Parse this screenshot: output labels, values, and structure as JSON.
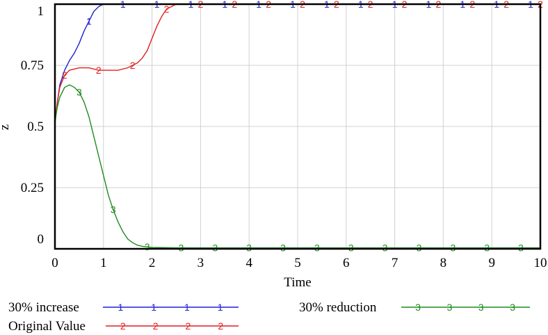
{
  "chart_data": {
    "type": "line",
    "xlabel": "Time",
    "ylabel": "z",
    "xlim": [
      0,
      10
    ],
    "ylim": [
      0,
      1
    ],
    "xticks": [
      "0",
      "1",
      "2",
      "3",
      "4",
      "5",
      "6",
      "7",
      "8",
      "9",
      "10"
    ],
    "yticks": [
      "0",
      "0.25",
      "0.5",
      "0.75",
      "1"
    ],
    "grid": true,
    "legend_position": "bottom",
    "series": [
      {
        "name": "30% increase",
        "marker": "1",
        "color": "#1f1fd6",
        "x": [
          0,
          0.05,
          0.1,
          0.2,
          0.3,
          0.4,
          0.5,
          0.6,
          0.7,
          0.8,
          0.9,
          1.0,
          1.1,
          1.5,
          2,
          3,
          4,
          5,
          6,
          7,
          8,
          9,
          10
        ],
        "y": [
          0.51,
          0.6,
          0.67,
          0.73,
          0.77,
          0.8,
          0.84,
          0.89,
          0.93,
          0.97,
          0.99,
          1.0,
          1.0,
          1.0,
          1.0,
          1.0,
          1.0,
          1.0,
          1.0,
          1.0,
          1.0,
          1.0,
          1.0
        ]
      },
      {
        "name": "Original Value",
        "marker": "2",
        "color": "#e01f1f",
        "x": [
          0,
          0.05,
          0.1,
          0.2,
          0.3,
          0.5,
          0.7,
          0.9,
          1.1,
          1.3,
          1.5,
          1.7,
          1.8,
          1.9,
          2.0,
          2.1,
          2.2,
          2.3,
          2.4,
          2.5,
          2.7,
          3,
          4,
          5,
          6,
          7,
          8,
          9,
          10
        ],
        "y": [
          0.52,
          0.6,
          0.66,
          0.71,
          0.73,
          0.74,
          0.74,
          0.73,
          0.73,
          0.73,
          0.74,
          0.76,
          0.78,
          0.81,
          0.86,
          0.91,
          0.95,
          0.98,
          0.99,
          1.0,
          1.0,
          1.0,
          1.0,
          1.0,
          1.0,
          1.0,
          1.0,
          1.0,
          1.0
        ]
      },
      {
        "name": "30% reduction",
        "marker": "3",
        "color": "#1f8a1f",
        "x": [
          0,
          0.05,
          0.1,
          0.2,
          0.3,
          0.4,
          0.5,
          0.6,
          0.7,
          0.8,
          0.9,
          1.0,
          1.1,
          1.2,
          1.3,
          1.4,
          1.5,
          1.6,
          1.7,
          1.8,
          1.9,
          2.0,
          2.2,
          2.5,
          3,
          4,
          5,
          6,
          7,
          8,
          9,
          10
        ],
        "y": [
          0.52,
          0.58,
          0.62,
          0.66,
          0.67,
          0.66,
          0.64,
          0.6,
          0.54,
          0.46,
          0.38,
          0.3,
          0.22,
          0.16,
          0.11,
          0.07,
          0.04,
          0.025,
          0.015,
          0.01,
          0.008,
          0.006,
          0.005,
          0.004,
          0.004,
          0.004,
          0.004,
          0.004,
          0.004,
          0.004,
          0.004,
          0.004
        ]
      }
    ],
    "legend": [
      {
        "label": "30% increase",
        "marker": "1",
        "color": "#1f1fd6"
      },
      {
        "label": "Original Value",
        "marker": "2",
        "color": "#e01f1f"
      },
      {
        "label": "30% reduction",
        "marker": "3",
        "color": "#1f8a1f"
      }
    ]
  }
}
